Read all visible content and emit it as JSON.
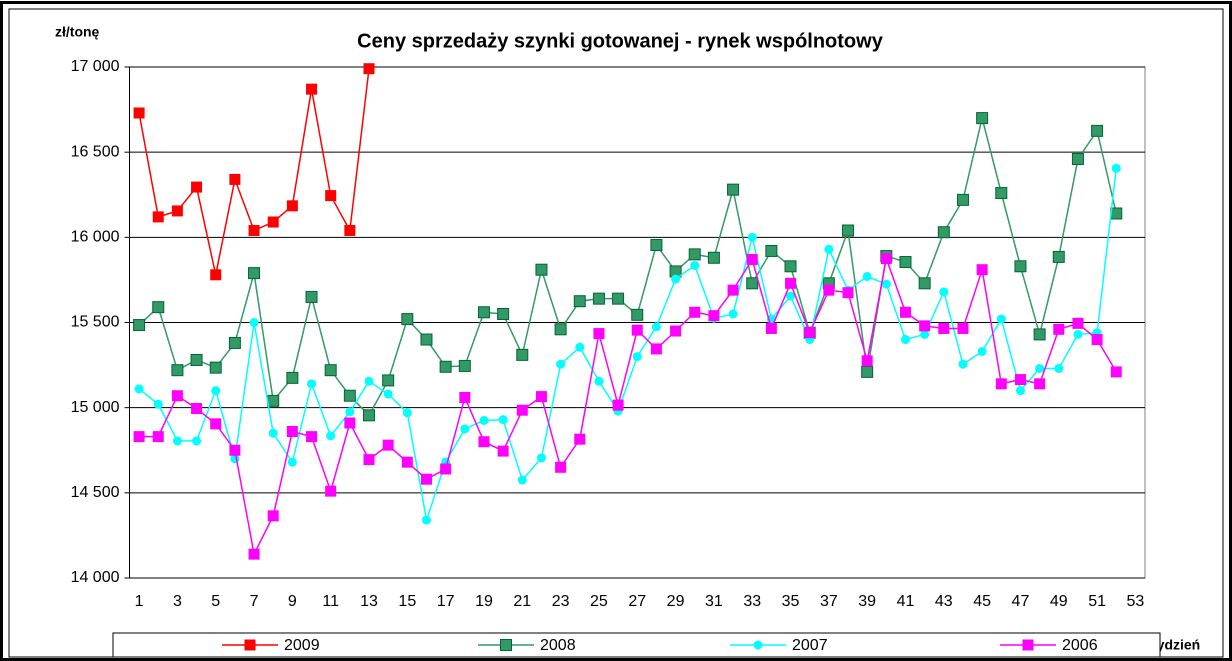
{
  "chart_data": {
    "type": "line",
    "title": "Ceny sprzedaży szynki gotowanej -  rynek wspólnotowy",
    "y_label": "zł/tonę",
    "x_label": "tydzień",
    "categories": [
      1,
      null,
      3,
      null,
      5,
      null,
      7,
      null,
      9,
      null,
      11,
      null,
      13,
      null,
      15,
      null,
      17,
      null,
      19,
      null,
      21,
      null,
      23,
      null,
      25,
      null,
      27,
      null,
      29,
      null,
      31,
      null,
      33,
      null,
      35,
      null,
      37,
      null,
      39,
      null,
      41,
      null,
      43,
      null,
      45,
      null,
      47,
      null,
      49,
      null,
      51,
      null,
      53
    ],
    "ylim": [
      14000,
      17000
    ],
    "yticks": [
      {
        "value": 14000,
        "label": "14 000"
      },
      {
        "value": 14500,
        "label": "14 500"
      },
      {
        "value": 15000,
        "label": "15 000"
      },
      {
        "value": 15500,
        "label": "15 500"
      },
      {
        "value": 16000,
        "label": "16 000"
      },
      {
        "value": 16500,
        "label": "16 500"
      },
      {
        "value": 17000,
        "label": "17 000"
      }
    ],
    "grid": true,
    "legend": "bottom",
    "series": [
      {
        "name": "2009",
        "color": "#ff0000",
        "marker": "square",
        "values": [
          16730,
          16120,
          16155,
          16295,
          15780,
          16340,
          16040,
          16090,
          16185,
          16870,
          16245,
          16040,
          16990,
          null,
          null,
          null,
          null,
          null,
          null,
          null,
          null,
          null,
          null,
          null,
          null,
          null,
          null,
          null,
          null,
          null,
          null,
          null,
          null,
          null,
          null,
          null,
          null,
          null,
          null,
          null,
          null,
          null,
          null,
          null,
          null,
          null,
          null,
          null,
          null,
          null,
          null,
          null,
          null
        ]
      },
      {
        "name": "2008",
        "color": "#339966",
        "marker": "square",
        "values": [
          15485,
          15590,
          15220,
          15280,
          15235,
          15380,
          15790,
          15040,
          15175,
          15650,
          15220,
          15070,
          14955,
          15160,
          15520,
          15400,
          15240,
          15245,
          15560,
          15550,
          15310,
          15810,
          15460,
          15625,
          15640,
          15640,
          15545,
          15955,
          15800,
          15900,
          15880,
          16280,
          15730,
          15920,
          15830,
          15440,
          15730,
          16040,
          15210,
          15890,
          15855,
          15730,
          16030,
          16220,
          16700,
          16260,
          15830,
          15430,
          15885,
          16460,
          16625,
          16140,
          null
        ]
      },
      {
        "name": "2007",
        "color": "#00ffff",
        "marker": "circle",
        "values": [
          15110,
          15020,
          14805,
          14805,
          15100,
          14700,
          15500,
          14850,
          14680,
          15140,
          14835,
          14975,
          15155,
          15080,
          14970,
          14340,
          14680,
          14875,
          14925,
          14930,
          14575,
          14705,
          15255,
          15355,
          15155,
          14980,
          15300,
          15475,
          15755,
          15835,
          15525,
          15550,
          16000,
          15520,
          15655,
          15400,
          15930,
          15690,
          15770,
          15725,
          15400,
          15430,
          15680,
          15255,
          15330,
          15520,
          15100,
          15230,
          15230,
          15430,
          15440,
          16405,
          null
        ]
      },
      {
        "name": "2006",
        "color": "#ff00ff",
        "marker": "square",
        "values": [
          14830,
          14830,
          15070,
          14995,
          14905,
          14750,
          14140,
          14365,
          14860,
          14830,
          14510,
          14910,
          14695,
          14780,
          14680,
          14580,
          14640,
          15060,
          14800,
          14745,
          14985,
          15065,
          14650,
          14815,
          15435,
          15015,
          15455,
          15345,
          15450,
          15560,
          15540,
          15690,
          15870,
          15465,
          15730,
          15440,
          15690,
          15675,
          15275,
          15875,
          15560,
          15480,
          15465,
          15465,
          15810,
          15140,
          15165,
          15140,
          15460,
          15495,
          15400,
          15210,
          null
        ]
      }
    ]
  }
}
